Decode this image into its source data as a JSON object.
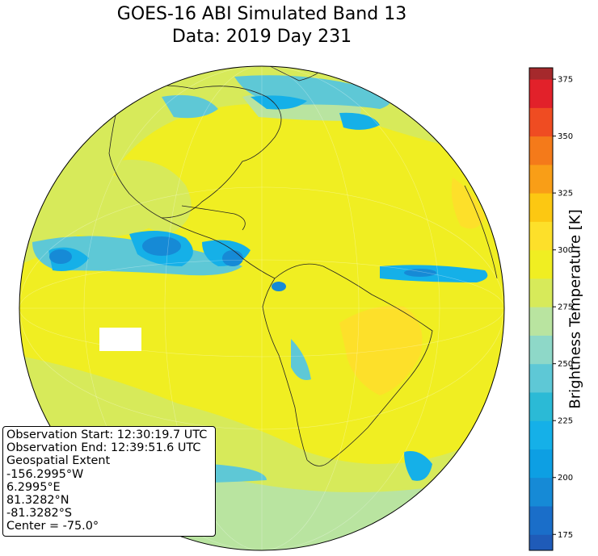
{
  "title": {
    "line1": "GOES-16 ABI Simulated Band 13",
    "line2": "Data: 2019 Day 231"
  },
  "info": {
    "observation_start": "Observation Start: 12:30:19.7 UTC",
    "observation_end": "Observation End: 12:39:51.6 UTC",
    "extent_label": "Geospatial Extent",
    "west": "-156.2995°W",
    "east": "6.2995°E",
    "north": "81.3282°N",
    "south": "-81.3282°S",
    "center": "Center = -75.0°"
  },
  "colorbar": {
    "label": "Brightness Temperature [K]",
    "range": [
      168,
      380
    ],
    "step": 12.5,
    "ticks": [
      "175",
      "200",
      "225",
      "250",
      "275",
      "300",
      "325",
      "350",
      "375"
    ],
    "tick_values": [
      175,
      200,
      225,
      250,
      275,
      300,
      325,
      350,
      375
    ],
    "colors": [
      "#1f5bb8",
      "#1a6ec9",
      "#168ad6",
      "#0d9fe3",
      "#15b0e8",
      "#2bbad6",
      "#5ec8d6",
      "#8ed8c8",
      "#b9e4a0",
      "#d7ea5a",
      "#f0ee22",
      "#fde02a",
      "#fcc812",
      "#f99e17",
      "#f47a1a",
      "#ef4c22",
      "#e2212a",
      "#a5292c"
    ]
  },
  "map_colors": {
    "ocean": "#f0ee22",
    "cool": "#d7ea5a",
    "cooler": "#b9e4a0",
    "cloud_light": "#5ec8d6",
    "cloud": "#15b0e8",
    "cloud_deep": "#168ad6",
    "warm": "#fde02a"
  }
}
